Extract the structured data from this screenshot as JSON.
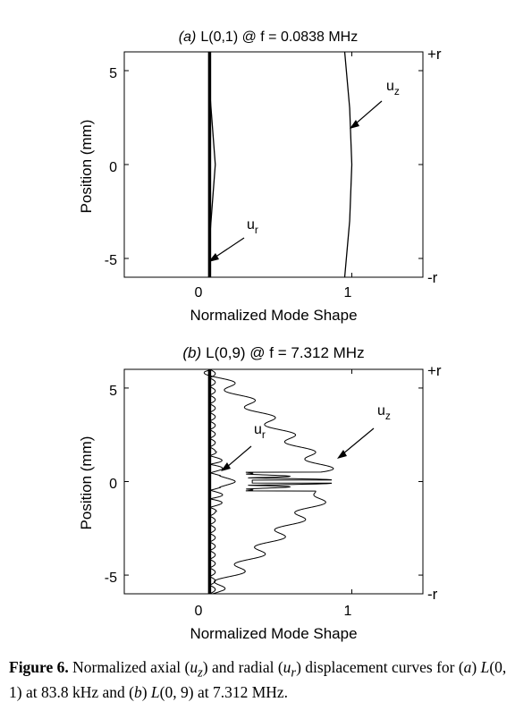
{
  "chart_data": [
    {
      "type": "line",
      "title_label": "(a)",
      "title": "L(0,1) @ f = 0.0838 MHz",
      "xlabel": "Normalized Mode Shape",
      "ylabel": "Position (mm)",
      "xlim": [
        -0.6,
        1.5
      ],
      "ylim": [
        -6,
        6
      ],
      "xticks": [
        "0",
        "1"
      ],
      "yticks": [
        "5",
        "0",
        "-5"
      ],
      "right_labels": {
        "top": "+r",
        "bottom": "-r"
      },
      "series": [
        {
          "name": "u_r",
          "x": [
            0.0,
            0.0,
            0.04,
            0.0,
            0.0
          ],
          "y": [
            -6,
            -4,
            0,
            4,
            6
          ]
        },
        {
          "name": "u_z",
          "x": [
            0.95,
            0.985,
            1.0,
            0.985,
            0.95
          ],
          "y": [
            -6,
            -3,
            0,
            3,
            6
          ]
        }
      ],
      "annotations": [
        {
          "label": "u",
          "sub": "r"
        },
        {
          "label": "u",
          "sub": "z"
        }
      ]
    },
    {
      "type": "line",
      "title_label": "(b)",
      "title": "L(0,9) @ f = 7.312 MHz",
      "xlabel": "Normalized Mode Shape",
      "ylabel": "Position (mm)",
      "xlim": [
        -0.6,
        1.5
      ],
      "ylim": [
        -6,
        6
      ],
      "xticks": [
        "0",
        "1"
      ],
      "yticks": [
        "5",
        "0",
        "-5"
      ],
      "right_labels": {
        "top": "+r",
        "bottom": "-r"
      },
      "series": [
        {
          "name": "u_r",
          "amplitude": 0.04,
          "peak": 0.18,
          "oscillations": 26
        },
        {
          "name": "u_z",
          "amplitude": 0.07,
          "peak": 1.0,
          "oscillations": 26
        }
      ],
      "annotations": [
        {
          "label": "u",
          "sub": "r"
        },
        {
          "label": "u",
          "sub": "z"
        }
      ]
    }
  ],
  "caption": {
    "label": "Figure 6.",
    "text_1": " Normalized axial (",
    "uz": "u",
    "uz_sub": "z",
    "text_2": ") and radial (",
    "ur": "u",
    "ur_sub": "r",
    "text_3": ") displacement curves for (",
    "a": "a",
    "text_4": ") ",
    "mode_a": "L",
    "mode_a_args": "(0, 1)",
    "text_5": " at 83.8 kHz and (",
    "b": "b",
    "text_6": ") ",
    "mode_b": "L",
    "mode_b_args": "(0, 9)",
    "text_7": " at 7.312 MHz."
  }
}
